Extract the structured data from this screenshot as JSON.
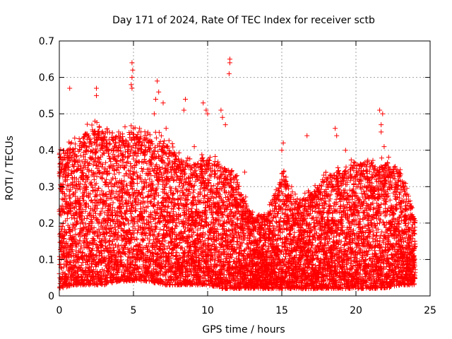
{
  "chart_data": {
    "type": "scatter",
    "title": "Day 171 of 2024, Rate Of TEC Index for receiver sctb",
    "xlabel": "GPS time / hours",
    "ylabel": "ROTI / TECUs",
    "xlim": [
      0,
      25
    ],
    "ylim": [
      0,
      0.7
    ],
    "x_ticks": [
      0,
      5,
      10,
      15,
      20,
      25
    ],
    "y_ticks": [
      0,
      0.1,
      0.2,
      0.3,
      0.4,
      0.5,
      0.6,
      0.7
    ],
    "x_tick_labels": [
      "0",
      "5",
      "10",
      "15",
      "20",
      "25"
    ],
    "y_tick_labels": [
      "0",
      "0.1",
      "0.2",
      "0.3",
      "0.4",
      "0.5",
      "0.6",
      "0.7"
    ],
    "grid": true,
    "marker": "plus",
    "color": "#ff0000",
    "x_range_of_data": [
      0,
      24
    ],
    "envelope_hours": [
      0,
      1,
      2,
      3,
      4,
      5,
      6,
      7,
      8,
      9,
      10,
      11,
      12,
      13,
      14,
      15,
      16,
      17,
      18,
      19,
      20,
      21,
      22,
      23,
      24
    ],
    "envelope_upper": [
      0.38,
      0.42,
      0.46,
      0.45,
      0.45,
      0.45,
      0.43,
      0.43,
      0.38,
      0.36,
      0.38,
      0.36,
      0.32,
      0.22,
      0.22,
      0.34,
      0.26,
      0.28,
      0.33,
      0.34,
      0.37,
      0.36,
      0.37,
      0.34,
      0.22
    ],
    "envelope_lower": [
      0.02,
      0.03,
      0.03,
      0.03,
      0.04,
      0.04,
      0.04,
      0.03,
      0.03,
      0.03,
      0.03,
      0.02,
      0.02,
      0.02,
      0.02,
      0.02,
      0.02,
      0.02,
      0.02,
      0.02,
      0.02,
      0.02,
      0.02,
      0.03,
      0.03
    ],
    "outliers": [
      {
        "x": 0.7,
        "y": 0.57
      },
      {
        "x": 2.5,
        "y": 0.57
      },
      {
        "x": 2.5,
        "y": 0.55
      },
      {
        "x": 2.4,
        "y": 0.48
      },
      {
        "x": 4.9,
        "y": 0.64
      },
      {
        "x": 4.95,
        "y": 0.62
      },
      {
        "x": 4.9,
        "y": 0.6
      },
      {
        "x": 4.85,
        "y": 0.58
      },
      {
        "x": 4.9,
        "y": 0.57
      },
      {
        "x": 6.6,
        "y": 0.59
      },
      {
        "x": 6.7,
        "y": 0.56
      },
      {
        "x": 6.5,
        "y": 0.54
      },
      {
        "x": 6.4,
        "y": 0.5
      },
      {
        "x": 7.0,
        "y": 0.53
      },
      {
        "x": 8.5,
        "y": 0.54
      },
      {
        "x": 8.4,
        "y": 0.51
      },
      {
        "x": 9.7,
        "y": 0.53
      },
      {
        "x": 9.9,
        "y": 0.51
      },
      {
        "x": 10.0,
        "y": 0.5
      },
      {
        "x": 10.9,
        "y": 0.51
      },
      {
        "x": 11.0,
        "y": 0.49
      },
      {
        "x": 11.5,
        "y": 0.65
      },
      {
        "x": 11.5,
        "y": 0.64
      },
      {
        "x": 11.45,
        "y": 0.61
      },
      {
        "x": 11.2,
        "y": 0.47
      },
      {
        "x": 12.5,
        "y": 0.34
      },
      {
        "x": 15.1,
        "y": 0.42
      },
      {
        "x": 15.0,
        "y": 0.4
      },
      {
        "x": 16.7,
        "y": 0.44
      },
      {
        "x": 18.6,
        "y": 0.46
      },
      {
        "x": 18.7,
        "y": 0.44
      },
      {
        "x": 19.3,
        "y": 0.4
      },
      {
        "x": 21.6,
        "y": 0.51
      },
      {
        "x": 21.8,
        "y": 0.5
      },
      {
        "x": 21.7,
        "y": 0.47
      },
      {
        "x": 21.7,
        "y": 0.45
      },
      {
        "x": 21.9,
        "y": 0.41
      },
      {
        "x": 22.0,
        "y": 0.31
      },
      {
        "x": 4.0,
        "y": 0.45
      },
      {
        "x": 5.2,
        "y": 0.42
      },
      {
        "x": 7.2,
        "y": 0.46
      },
      {
        "x": 9.1,
        "y": 0.41
      }
    ]
  }
}
